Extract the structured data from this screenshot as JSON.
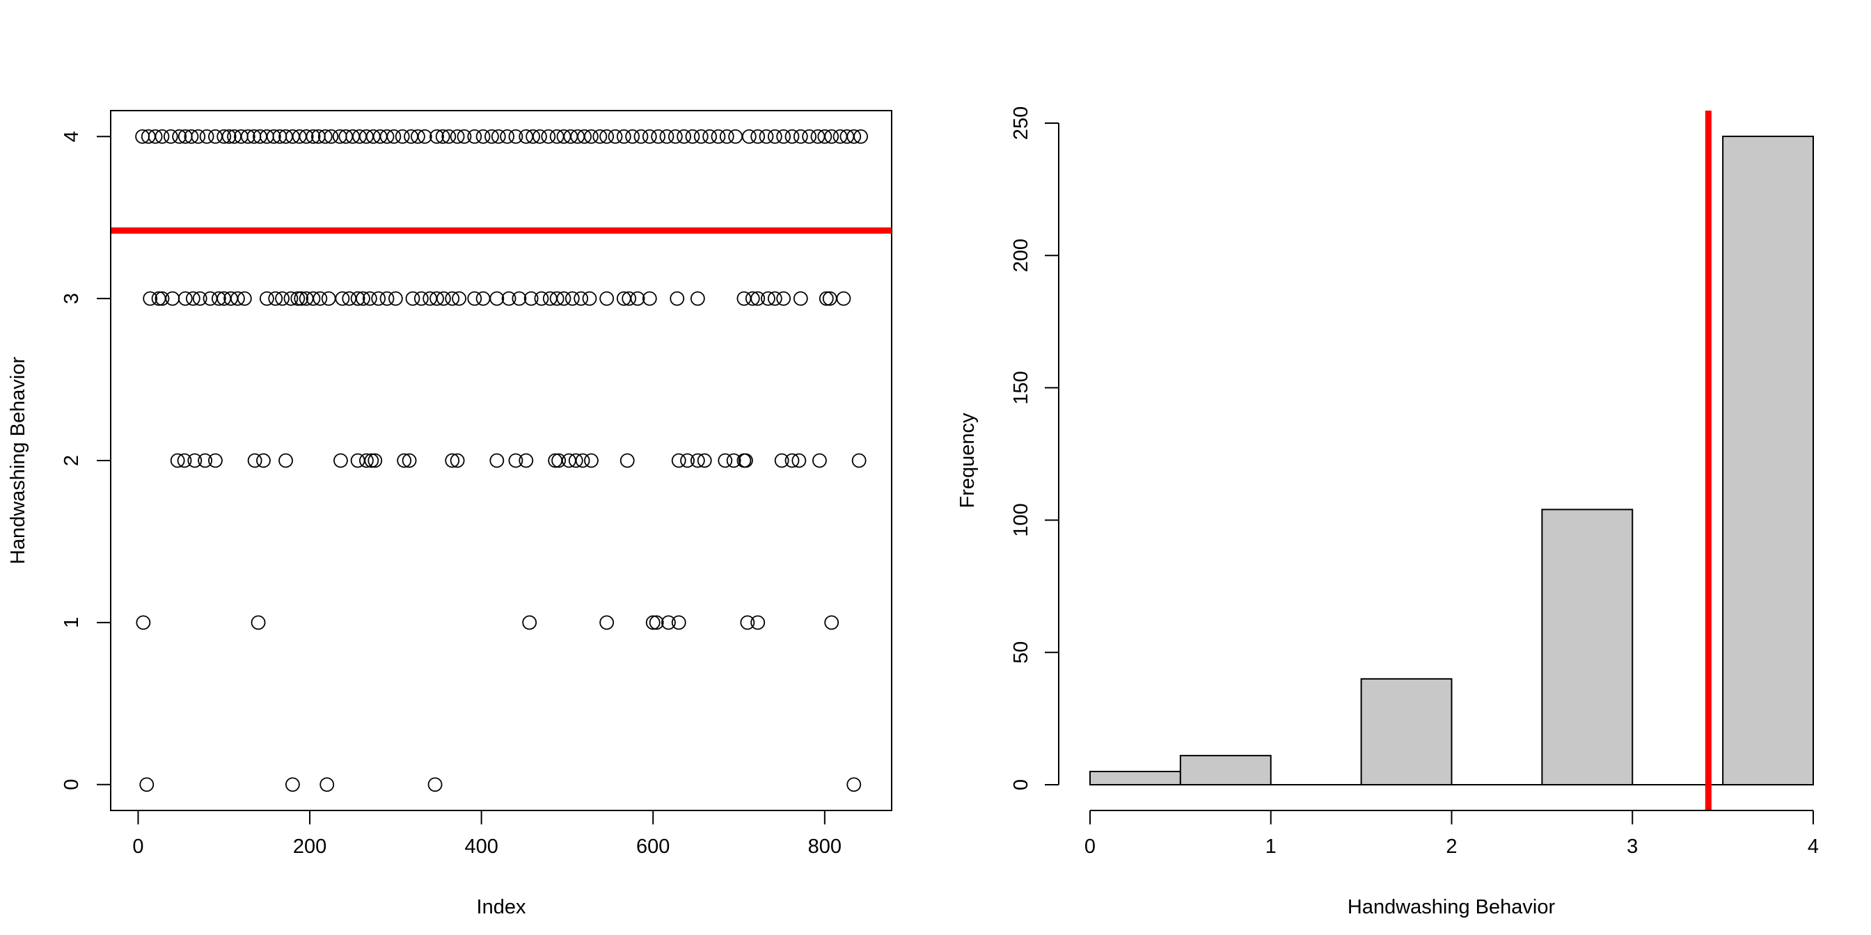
{
  "chart_data": [
    {
      "type": "scatter",
      "title": "",
      "xlabel": "Index",
      "ylabel": "Handwashing Behavior",
      "xlim": [
        -32,
        878
      ],
      "ylim": [
        -0.16,
        4.16
      ],
      "x_ticks": [
        "0",
        "200",
        "400",
        "600",
        "800"
      ],
      "y_ticks": [
        "0",
        "1",
        "2",
        "3",
        "4"
      ],
      "marker": "open-circle",
      "hline": {
        "y": 3.42,
        "color": "#ff0000"
      },
      "grid": false,
      "series": [
        {
          "y": 4,
          "x": [
            5,
            12,
            20,
            28,
            38,
            48,
            55,
            62,
            70,
            80,
            90,
            100,
            106,
            112,
            120,
            128,
            135,
            142,
            150,
            158,
            165,
            172,
            180,
            188,
            196,
            204,
            210,
            218,
            225,
            235,
            242,
            250,
            258,
            266,
            274,
            282,
            290,
            298,
            308,
            318,
            326,
            334,
            348,
            355,
            362,
            372,
            380,
            392,
            402,
            412,
            420,
            430,
            440,
            452,
            460,
            468,
            478,
            488,
            496,
            504,
            512,
            520,
            528,
            538,
            546,
            556,
            566,
            576,
            586,
            596,
            606,
            616,
            626,
            636,
            646,
            656,
            666,
            676,
            686,
            696,
            712,
            722,
            732,
            742,
            752,
            762,
            772,
            782,
            792,
            800,
            808,
            818,
            826,
            834,
            842
          ]
        },
        {
          "y": 3,
          "x": [
            14,
            24,
            28,
            40,
            55,
            64,
            72,
            84,
            94,
            100,
            108,
            116,
            124,
            150,
            160,
            168,
            178,
            186,
            190,
            196,
            204,
            212,
            222,
            238,
            246,
            256,
            262,
            270,
            280,
            290,
            300,
            320,
            330,
            340,
            348,
            356,
            366,
            374,
            392,
            402,
            418,
            432,
            444,
            458,
            470,
            480,
            488,
            496,
            506,
            516,
            526,
            546,
            566,
            572,
            582,
            596,
            628,
            652,
            706,
            716,
            722,
            734,
            742,
            752,
            772,
            802,
            806,
            822
          ]
        },
        {
          "y": 2,
          "x": [
            46,
            54,
            66,
            78,
            90,
            136,
            146,
            172,
            236,
            256,
            266,
            272,
            276,
            310,
            316,
            366,
            372,
            418,
            440,
            452,
            486,
            490,
            502,
            510,
            518,
            528,
            570,
            630,
            640,
            652,
            660,
            684,
            694,
            706,
            708,
            750,
            762,
            770,
            794,
            840
          ]
        },
        {
          "y": 1,
          "x": [
            6,
            140,
            456,
            546,
            600,
            604,
            618,
            630,
            710,
            722,
            808
          ]
        },
        {
          "y": 0,
          "x": [
            10,
            180,
            220,
            346,
            834
          ]
        }
      ]
    },
    {
      "type": "bar",
      "title": "",
      "xlabel": "Handwashing Behavior",
      "ylabel": "Frequency",
      "xlim": [
        0,
        4
      ],
      "ylim": [
        0,
        250
      ],
      "x_ticks": [
        "0",
        "1",
        "2",
        "3",
        "4"
      ],
      "y_ticks": [
        "0",
        "50",
        "100",
        "150",
        "200",
        "250"
      ],
      "bins": [
        {
          "start": 0,
          "end": 0.5,
          "count": 5
        },
        {
          "start": 0.5,
          "end": 1,
          "count": 11
        },
        {
          "start": 1,
          "end": 1.5,
          "count": 0
        },
        {
          "start": 1.5,
          "end": 2,
          "count": 40
        },
        {
          "start": 2,
          "end": 2.5,
          "count": 0
        },
        {
          "start": 2.5,
          "end": 3,
          "count": 104
        },
        {
          "start": 3,
          "end": 3.5,
          "count": 0
        },
        {
          "start": 3.5,
          "end": 4,
          "count": 245
        }
      ],
      "bar_color": "#c8c8c8",
      "vline": {
        "x": 3.42,
        "color": "#ff0000"
      },
      "grid": false
    }
  ]
}
